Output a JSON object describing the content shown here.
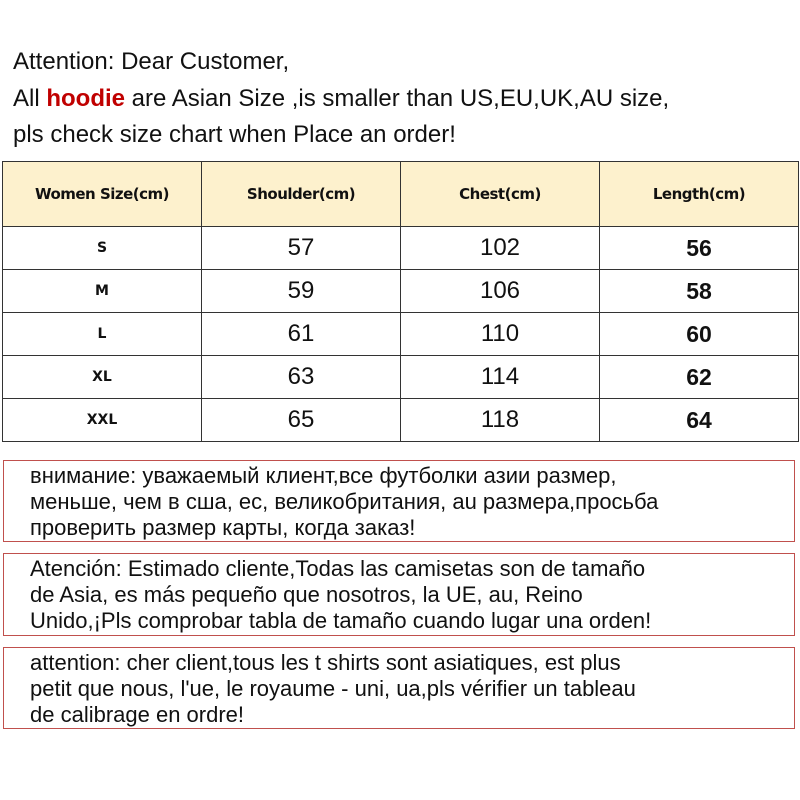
{
  "intro": {
    "line1": "Attention: Dear Customer,",
    "line2_prefix": "All ",
    "line2_highlight": "hoodie",
    "line2_suffix": " are  Asian Size ,is smaller than US,EU,UK,AU size,",
    "line3": "pls check size chart when Place an order!",
    "highlight_color": "#c00000"
  },
  "size_table": {
    "headers": [
      "Women Size(cm)",
      "Shoulder(cm)",
      "Chest(cm)",
      "Length(cm)"
    ],
    "rows": [
      [
        "S",
        "57",
        "102",
        "56"
      ],
      [
        "M",
        "59",
        "106",
        "58"
      ],
      [
        "L",
        "61",
        "110",
        "60"
      ],
      [
        "XL",
        "63",
        "114",
        "62"
      ],
      [
        "XXL",
        "65",
        "118",
        "64"
      ]
    ],
    "header_bg": "#fdf1cd"
  },
  "notices": [
    {
      "lines": [
        "внимание: уважаемый клиент,все футболки азии размер,",
        "меньше, чем в сша, ес, великобритания, au размера,просьба",
        "проверить размер карты, когда заказ!"
      ]
    },
    {
      "lines": [
        "Atención: Estimado cliente,Todas las camisetas son de tamaño",
        "de Asia, es más pequeño que nosotros, la UE, au, Reino",
        "Unido,¡Pls comprobar tabla de tamaño cuando lugar una orden!"
      ]
    },
    {
      "lines": [
        "attention: cher client,tous les t shirts sont asiatiques, est plus",
        "petit que nous, l'ue, le royaume - uni, ua,pls vérifier un tableau",
        "de calibrage en ordre!"
      ]
    }
  ],
  "border_color": "#c0504d"
}
